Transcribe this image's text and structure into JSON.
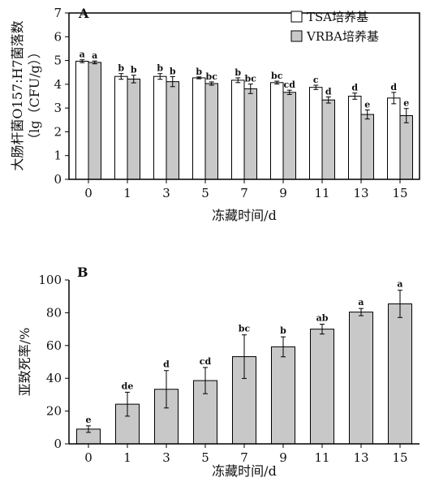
{
  "chart_data": [
    {
      "type": "bar",
      "panel_label": "A",
      "categories": [
        "0",
        "1",
        "3",
        "5",
        "7",
        "9",
        "11",
        "13",
        "15"
      ],
      "xlabel": "冻藏时间/d",
      "ylabel_line1": "大肠杆菌O157:H7菌落数",
      "ylabel_line2": "（lg（CFU/g））",
      "ylim": [
        0,
        7
      ],
      "yticks": [
        "0",
        "1",
        "2",
        "3",
        "4",
        "5",
        "6",
        "7"
      ],
      "legend_position": "top-right",
      "series": [
        {
          "name": "TSA培养基",
          "color": "#ffffff",
          "values": [
            4.97,
            4.33,
            4.33,
            4.27,
            4.17,
            4.07,
            3.87,
            3.5,
            3.42
          ],
          "errors": [
            0.06,
            0.12,
            0.12,
            0.04,
            0.1,
            0.06,
            0.09,
            0.13,
            0.24
          ],
          "labels": [
            "a",
            "b",
            "b",
            "b",
            "b",
            "bc",
            "c",
            "d",
            "d"
          ]
        },
        {
          "name": "VRBA培养基",
          "color": "#c8c8c8",
          "values": [
            4.92,
            4.22,
            4.11,
            4.03,
            3.81,
            3.66,
            3.34,
            2.73,
            2.68
          ],
          "errors": [
            0.06,
            0.16,
            0.21,
            0.07,
            0.2,
            0.09,
            0.13,
            0.19,
            0.3
          ],
          "labels": [
            "a",
            "b",
            "b",
            "bc",
            "bc",
            "cd",
            "d",
            "e",
            "e"
          ]
        }
      ]
    },
    {
      "type": "bar",
      "panel_label": "B",
      "categories": [
        "0",
        "1",
        "3",
        "5",
        "7",
        "9",
        "11",
        "13",
        "15"
      ],
      "xlabel": "冻藏时间/d",
      "ylabel": "亚致死率/%",
      "ylim": [
        0,
        100
      ],
      "yticks": [
        "0",
        "20",
        "40",
        "60",
        "80",
        "100"
      ],
      "series": [
        {
          "color": "#c8c8c8",
          "values": [
            9.0,
            24.2,
            33.3,
            38.6,
            53.2,
            59.2,
            70.0,
            80.4,
            85.4
          ],
          "errors": [
            2.0,
            7.3,
            11.4,
            8.0,
            13.3,
            6.1,
            3.0,
            2.2,
            8.3
          ],
          "labels": [
            "e",
            "de",
            "d",
            "cd",
            "bc",
            "b",
            "ab",
            "a",
            "a"
          ]
        }
      ]
    }
  ]
}
